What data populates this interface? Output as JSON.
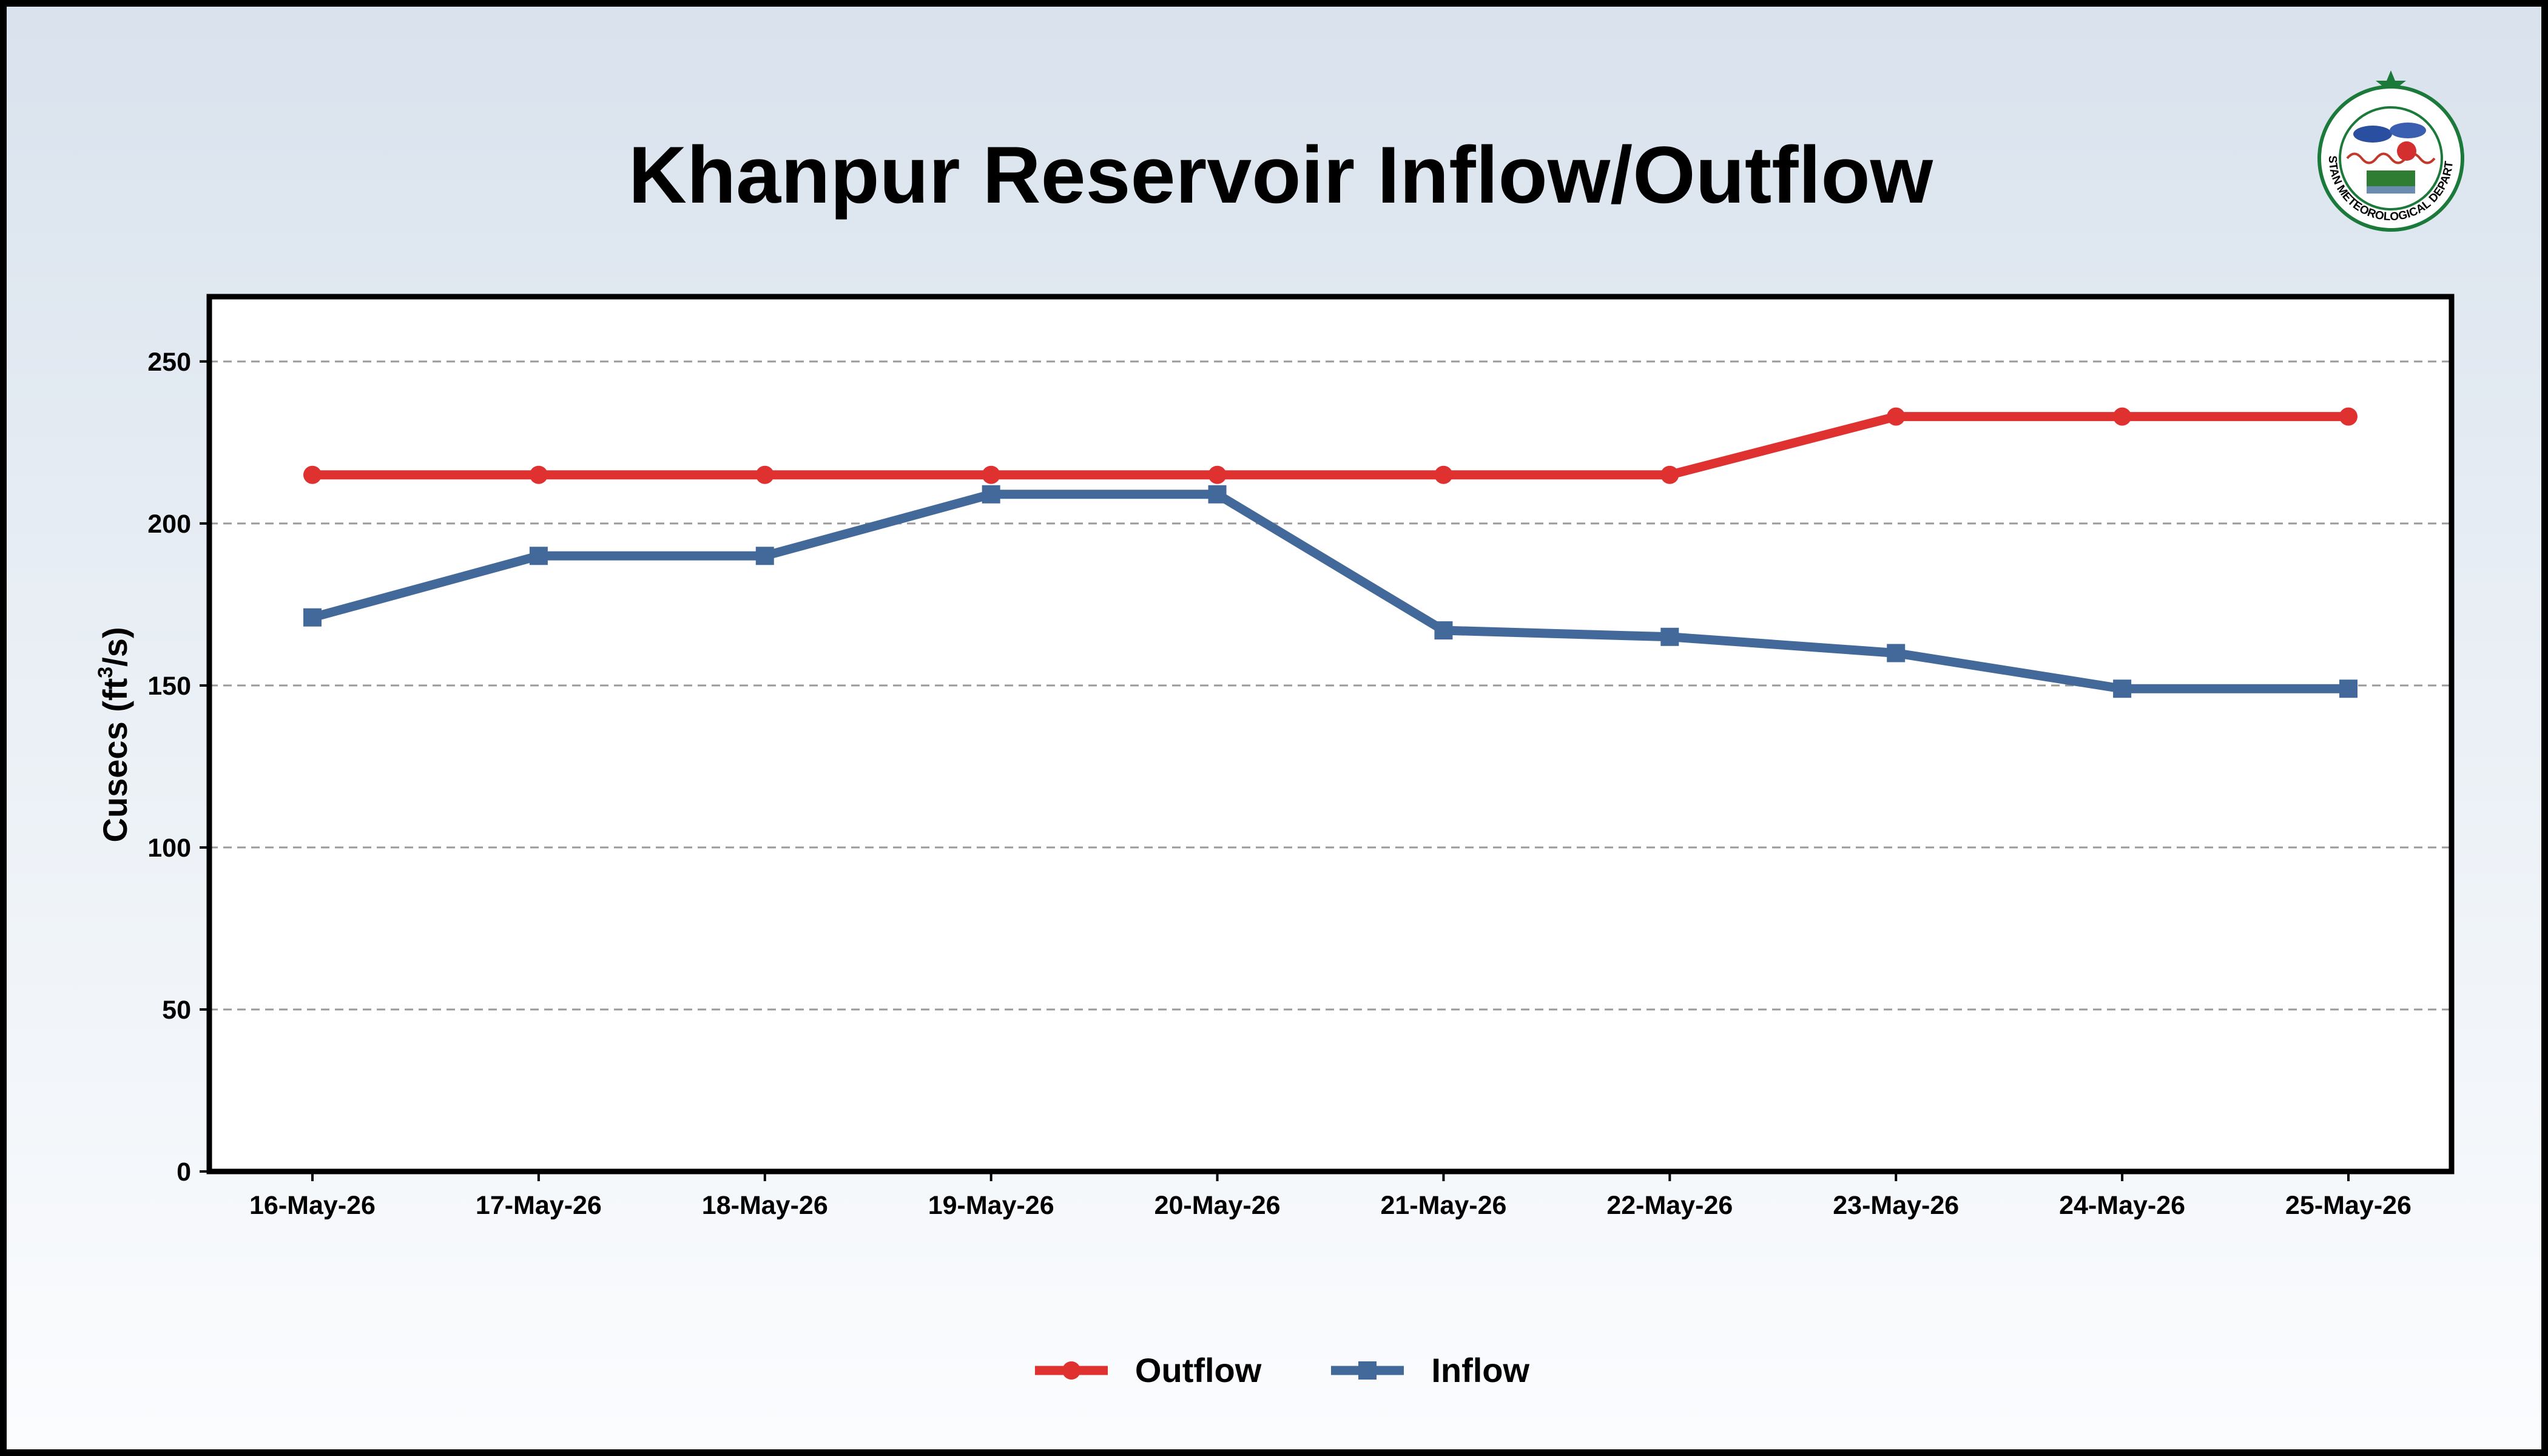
{
  "chart_data": {
    "type": "line",
    "title": "Khanpur Reservoir Inflow/Outflow",
    "ylabel": "Cusecs (ft³/s)",
    "ylabel_parts": {
      "main": "Cusecs (ft",
      "sup": "3",
      "end": "/s)"
    },
    "categories": [
      "16-May-26",
      "17-May-26",
      "18-May-26",
      "19-May-26",
      "20-May-26",
      "21-May-26",
      "22-May-26",
      "23-May-26",
      "24-May-26",
      "25-May-26"
    ],
    "ylim": [
      0,
      270
    ],
    "yticks": [
      0,
      50,
      100,
      150,
      200,
      250
    ],
    "grid": true,
    "legend_position": "bottom-center",
    "series": [
      {
        "name": "Outflow",
        "color": "#e03131",
        "marker": "circle",
        "values": [
          215,
          215,
          215,
          215,
          215,
          215,
          215,
          233,
          233,
          233
        ]
      },
      {
        "name": "Inflow",
        "color": "#43699a",
        "marker": "square",
        "values": [
          171,
          190,
          190,
          209,
          209,
          167,
          165,
          160,
          149,
          149
        ]
      }
    ]
  },
  "logo": {
    "icon": "pakistan-meteorological-department-logo",
    "text": "PAKISTAN METEOROLOGICAL DEPARTMENT",
    "star_color": "#1b7a3a"
  }
}
